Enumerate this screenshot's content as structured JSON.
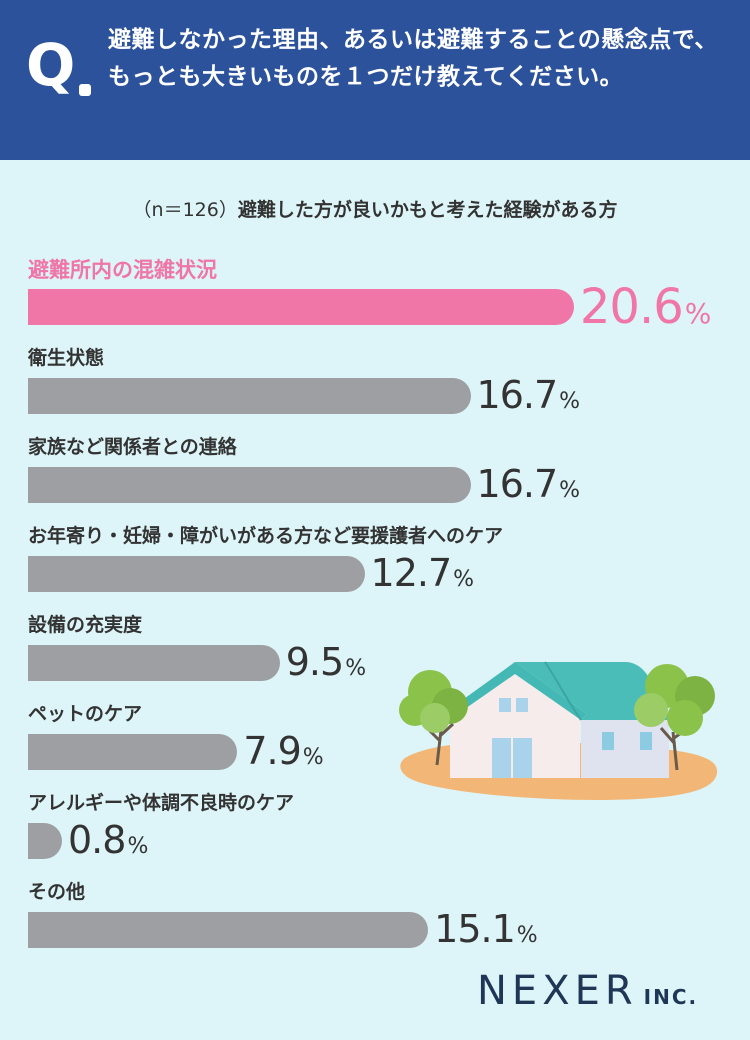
{
  "header": {
    "q_mark": "Q",
    "question": "避難しなかった理由、あるいは避難することの懸念点で、もっとも大きいものを１つだけ教えてください。"
  },
  "subtitle": {
    "n_label": "（n＝126）",
    "text": "避難した方が良いかもと考えた経験がある方"
  },
  "chart_data": {
    "type": "bar",
    "orientation": "horizontal",
    "unit": "%",
    "categories": [
      "避難所内の混雑状況",
      "衛生状態",
      "家族など関係者との連絡",
      "お年寄り・妊婦・障がいがある方など要援護者へのケア",
      "設備の充実度",
      "ペットのケア",
      "アレルギーや体調不良時のケア",
      "その他"
    ],
    "values": [
      20.6,
      16.7,
      16.7,
      12.7,
      9.5,
      7.9,
      0.8,
      15.1
    ],
    "value_labels": [
      "20.6",
      "16.7",
      "16.7",
      "12.7",
      "9.5",
      "7.9",
      "0.8",
      "15.1"
    ],
    "highlight_index": 0,
    "colors": {
      "highlight": "#ef76a7",
      "default": "#9e9fa3"
    }
  },
  "logo": {
    "main": "NEXER",
    "sub": "INC."
  }
}
